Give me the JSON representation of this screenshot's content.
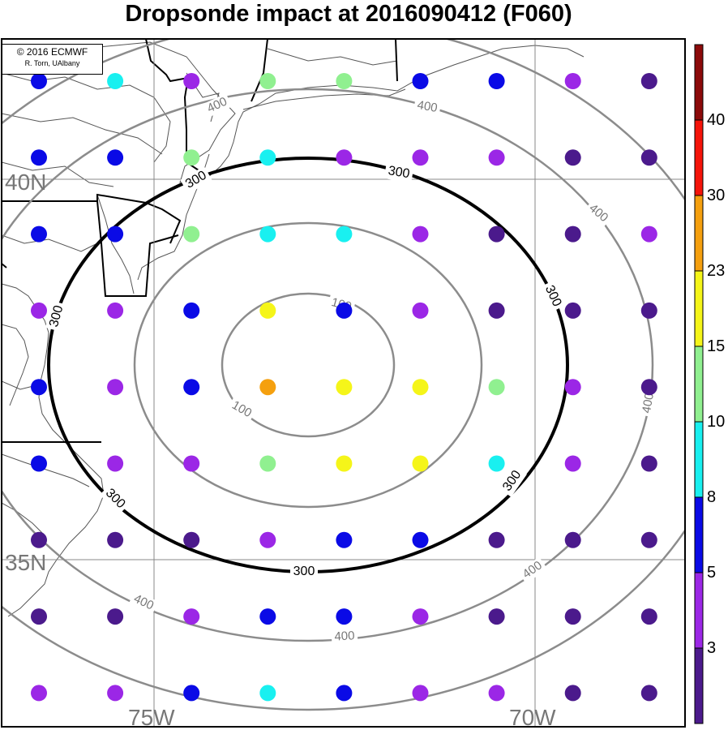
{
  "title": "Dropsonde impact at 2016090412 (F060)",
  "credit": {
    "line1": "© 2016 ECMWF",
    "line2": "R. Torn, UAlbany"
  },
  "grid_labels": {
    "lat_40": "40N",
    "lat_35": "35N",
    "lon_75": "75W",
    "lon_70": "70W"
  },
  "contour_labels": {
    "c100": "100",
    "c300": "300",
    "c400": "400"
  },
  "colorbar": {
    "colors": [
      "#4b1a8c",
      "#9b27e6",
      "#0a0ae6",
      "#19f0f0",
      "#90f090",
      "#f5f519",
      "#f5a00f",
      "#f5140a",
      "#8c0a0a"
    ],
    "labels": [
      "3",
      "5",
      "8",
      "10",
      "15",
      "23",
      "30",
      "40"
    ]
  },
  "colors": {
    "land_outline": "#555555",
    "state_border": "#000000",
    "gridline": "#888888",
    "contour_gray": "#8c8c8c",
    "contour_black": "#000000"
  },
  "dot_colors": {
    "1": "#4b1a8c",
    "2": "#9b27e6",
    "3": "#0a0ae6",
    "4": "#19f0f0",
    "5": "#90f090",
    "6": "#f5f519",
    "7": "#f5a00f"
  },
  "dots": [
    [
      3,
      4,
      2,
      5,
      5,
      3,
      3,
      2,
      1
    ],
    [
      3,
      3,
      5,
      4,
      2,
      2,
      2,
      1,
      1
    ],
    [
      3,
      3,
      5,
      4,
      4,
      2,
      1,
      1,
      2
    ],
    [
      2,
      2,
      3,
      6,
      3,
      2,
      1,
      1,
      1
    ],
    [
      3,
      2,
      3,
      7,
      6,
      6,
      5,
      2,
      1
    ],
    [
      3,
      2,
      2,
      5,
      6,
      6,
      4,
      2,
      1
    ],
    [
      1,
      1,
      1,
      2,
      3,
      3,
      1,
      1,
      1
    ],
    [
      1,
      1,
      2,
      3,
      3,
      2,
      1,
      1,
      1
    ],
    [
      2,
      2,
      3,
      4,
      3,
      2,
      2,
      1,
      1
    ]
  ]
}
